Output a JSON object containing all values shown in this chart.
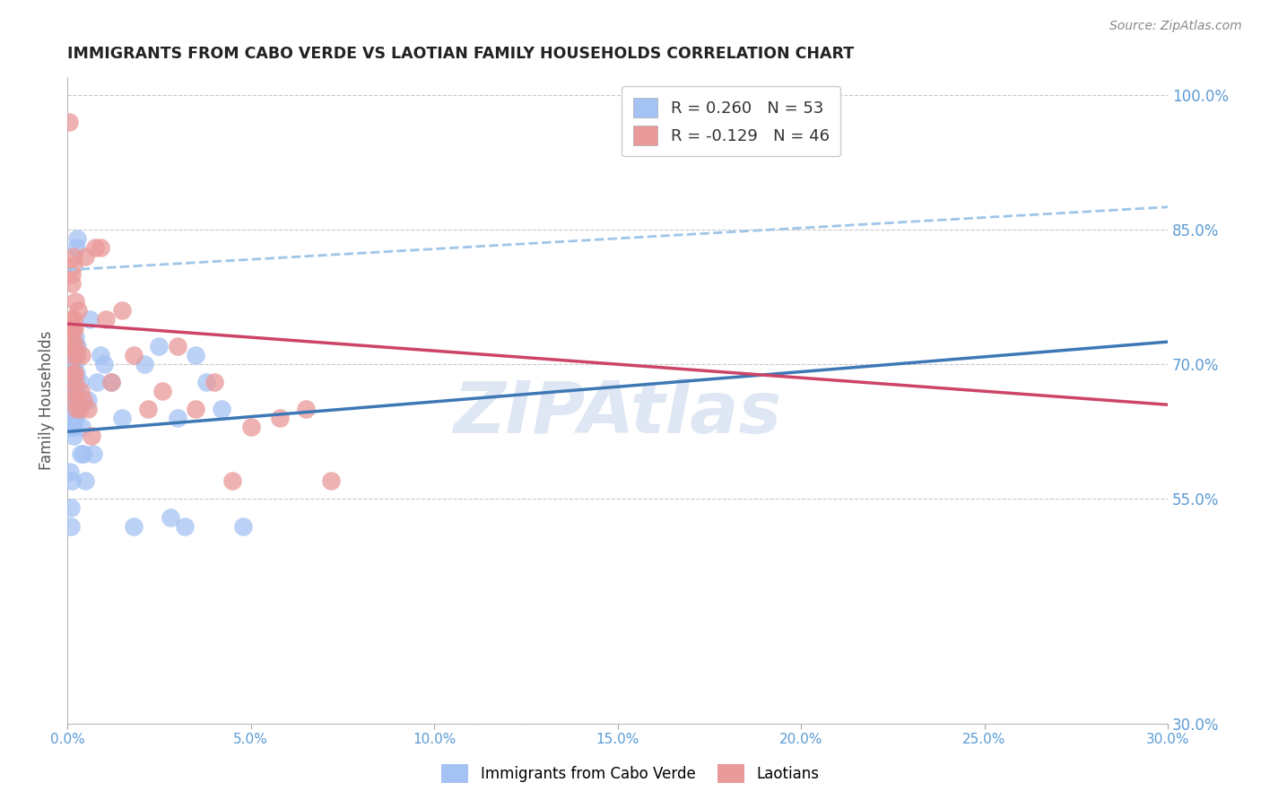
{
  "title": "IMMIGRANTS FROM CABO VERDE VS LAOTIAN FAMILY HOUSEHOLDS CORRELATION CHART",
  "source": "Source: ZipAtlas.com",
  "ylabel": "Family Households",
  "right_yticks": [
    30.0,
    55.0,
    70.0,
    85.0,
    100.0
  ],
  "xlim": [
    0.0,
    30.0
  ],
  "ylim": [
    30.0,
    102.0
  ],
  "cabo_verde_R": 0.26,
  "cabo_verde_N": 53,
  "laotian_R": -0.129,
  "laotian_N": 46,
  "blue_scatter_color": "#a4c2f4",
  "pink_scatter_color": "#ea9999",
  "blue_line_color": "#3d78b5",
  "pink_line_color": "#cc4466",
  "blue_dashed_color": "#9fc5e8",
  "watermark": "ZIPAtlas",
  "watermark_color": "#c8d8ec",
  "background_color": "#ffffff",
  "grid_color": "#c8c8c8",
  "axis_label_color": "#5b9bd5",
  "title_color": "#222222",
  "cabo_verde_x": [
    0.05,
    0.07,
    0.09,
    0.1,
    0.11,
    0.12,
    0.13,
    0.13,
    0.14,
    0.14,
    0.15,
    0.15,
    0.16,
    0.16,
    0.17,
    0.17,
    0.18,
    0.18,
    0.19,
    0.2,
    0.2,
    0.21,
    0.22,
    0.22,
    0.23,
    0.24,
    0.25,
    0.26,
    0.28,
    0.3,
    0.33,
    0.36,
    0.4,
    0.44,
    0.5,
    0.55,
    0.6,
    0.7,
    0.8,
    0.9,
    1.0,
    1.2,
    1.5,
    1.8,
    2.1,
    2.5,
    2.8,
    3.0,
    3.2,
    3.5,
    3.8,
    4.2,
    4.8
  ],
  "cabo_verde_y": [
    63,
    58,
    54,
    52,
    57,
    66,
    65,
    64,
    68,
    63,
    65,
    70,
    64,
    68,
    62,
    72,
    63,
    65,
    71,
    66,
    70,
    64,
    67,
    73,
    65,
    69,
    83,
    84,
    72,
    65,
    68,
    60,
    63,
    60,
    57,
    66,
    75,
    60,
    68,
    71,
    70,
    68,
    64,
    52,
    70,
    72,
    53,
    64,
    52,
    71,
    68,
    65,
    52
  ],
  "laotian_x": [
    0.05,
    0.07,
    0.09,
    0.11,
    0.12,
    0.13,
    0.14,
    0.15,
    0.15,
    0.16,
    0.16,
    0.17,
    0.18,
    0.18,
    0.19,
    0.19,
    0.2,
    0.21,
    0.22,
    0.23,
    0.25,
    0.27,
    0.3,
    0.33,
    0.36,
    0.4,
    0.45,
    0.5,
    0.55,
    0.65,
    0.75,
    0.9,
    1.05,
    1.2,
    1.5,
    1.8,
    2.2,
    2.6,
    3.0,
    3.5,
    4.0,
    4.5,
    5.0,
    5.8,
    6.5,
    7.2
  ],
  "laotian_y": [
    97,
    74,
    75,
    79,
    72,
    80,
    73,
    74,
    71,
    75,
    67,
    69,
    81,
    82,
    69,
    66,
    74,
    77,
    72,
    68,
    65,
    71,
    76,
    65,
    67,
    71,
    66,
    82,
    65,
    62,
    83,
    83,
    75,
    68,
    76,
    71,
    65,
    67,
    72,
    65,
    68,
    57,
    63,
    64,
    65,
    57
  ],
  "blue_reg_x0": 0.0,
  "blue_reg_y0": 62.5,
  "blue_reg_x1": 30.0,
  "blue_reg_y1": 72.5,
  "pink_reg_x0": 0.0,
  "pink_reg_y0": 74.5,
  "pink_reg_x1": 30.0,
  "pink_reg_y1": 65.5,
  "dashed_x0": 0.0,
  "dashed_y0": 80.5,
  "dashed_x1": 30.0,
  "dashed_y1": 87.5
}
